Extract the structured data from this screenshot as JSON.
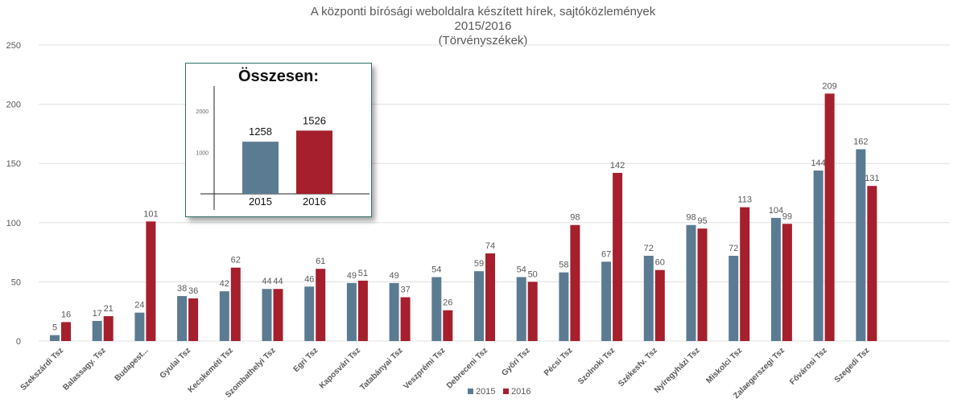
{
  "title": [
    "A központi bírósági weboldalra készített hírek, sajtóközlemények",
    "2015/2016",
    "(Törvényszékek)"
  ],
  "colors": {
    "s2015": "#5b7b92",
    "s2016": "#a51f2d",
    "grid": "#e0e0e0",
    "axis_text": "#595959"
  },
  "chart_data": [
    {
      "type": "bar",
      "categories": [
        "Szekszárdi Tsz",
        "Balassagy. Tsz",
        "Budapest...",
        "Gyulai Tsz",
        "Kecskeméti Tsz",
        "Szombathelyi Tsz",
        "Egri Tsz",
        "Kaposvári Tsz",
        "Tatabányai Tsz",
        "Veszprémi Tsz",
        "Debreceni Tsz",
        "Győri Tsz",
        "Pécsi Tsz",
        "Szolnoki Tsz",
        "Székesfv. Tsz",
        "Nyíregyházi Tsz",
        "Miskolci Tsz",
        "Zalaegerszegi Tsz",
        "Fővárosi Tsz",
        "Szegedi Tsz"
      ],
      "series": [
        {
          "name": "2015",
          "values": [
            5,
            17,
            24,
            38,
            42,
            44,
            46,
            49,
            49,
            54,
            59,
            54,
            58,
            67,
            72,
            98,
            72,
            104,
            144,
            162
          ]
        },
        {
          "name": "2016",
          "values": [
            16,
            21,
            101,
            36,
            62,
            44,
            61,
            51,
            37,
            26,
            74,
            50,
            98,
            142,
            60,
            95,
            113,
            99,
            209,
            131
          ]
        }
      ],
      "yticks": [
        0,
        50,
        100,
        150,
        200,
        250
      ],
      "ylim": [
        0,
        250
      ],
      "grid": true,
      "legend": "bottom-center"
    },
    {
      "type": "bar",
      "title": "Összesen:",
      "categories": [
        "2015",
        "2016"
      ],
      "values": [
        1258,
        1526
      ],
      "yticks": [
        1000,
        2000
      ]
    }
  ]
}
